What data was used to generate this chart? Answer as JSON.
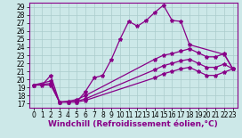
{
  "xlabel": "Windchill (Refroidissement éolien,°C)",
  "bg_color": "#cce8e8",
  "grid_color": "#aacccc",
  "line_color": "#880088",
  "xlim": [
    -0.5,
    23.5
  ],
  "ylim": [
    16.5,
    29.5
  ],
  "xticks": [
    0,
    1,
    2,
    3,
    4,
    5,
    6,
    7,
    8,
    9,
    10,
    11,
    12,
    13,
    14,
    15,
    16,
    17,
    18,
    19,
    20,
    21,
    22,
    23
  ],
  "yticks": [
    17,
    18,
    19,
    20,
    21,
    22,
    23,
    24,
    25,
    26,
    27,
    28,
    29
  ],
  "lines": [
    {
      "x": [
        0,
        1,
        2,
        3,
        4,
        5,
        6,
        7,
        8,
        9,
        10,
        11,
        12,
        13,
        14,
        15,
        16,
        17,
        18,
        22,
        23
      ],
      "y": [
        19.3,
        19.3,
        20.5,
        17.2,
        17.2,
        17.2,
        18.5,
        20.2,
        20.5,
        22.5,
        25.0,
        27.2,
        26.6,
        27.3,
        28.3,
        29.2,
        27.3,
        27.2,
        24.3,
        23.1,
        21.3
      ]
    },
    {
      "x": [
        0,
        2,
        3,
        4,
        5,
        6,
        14,
        15,
        16,
        17,
        18,
        19,
        20,
        21,
        22,
        23
      ],
      "y": [
        19.3,
        19.8,
        17.2,
        17.3,
        17.5,
        18.0,
        22.5,
        23.0,
        23.2,
        23.5,
        23.8,
        23.3,
        22.8,
        22.8,
        23.2,
        21.3
      ]
    },
    {
      "x": [
        0,
        2,
        3,
        4,
        5,
        6,
        14,
        15,
        16,
        17,
        18,
        19,
        20,
        21,
        22,
        23
      ],
      "y": [
        19.3,
        19.5,
        17.2,
        17.2,
        17.3,
        17.6,
        21.2,
        21.7,
        22.0,
        22.3,
        22.5,
        22.0,
        21.5,
        21.5,
        21.9,
        21.3
      ]
    },
    {
      "x": [
        0,
        2,
        3,
        4,
        5,
        6,
        14,
        15,
        16,
        17,
        18,
        19,
        20,
        21,
        22,
        23
      ],
      "y": [
        19.3,
        19.3,
        17.2,
        17.2,
        17.2,
        17.4,
        20.2,
        20.7,
        21.0,
        21.3,
        21.5,
        21.0,
        20.5,
        20.5,
        20.9,
        21.3
      ]
    }
  ],
  "marker": "*",
  "marker_size": 3,
  "line_width": 0.9,
  "tick_fontsize": 5.5,
  "label_fontsize": 6.5
}
